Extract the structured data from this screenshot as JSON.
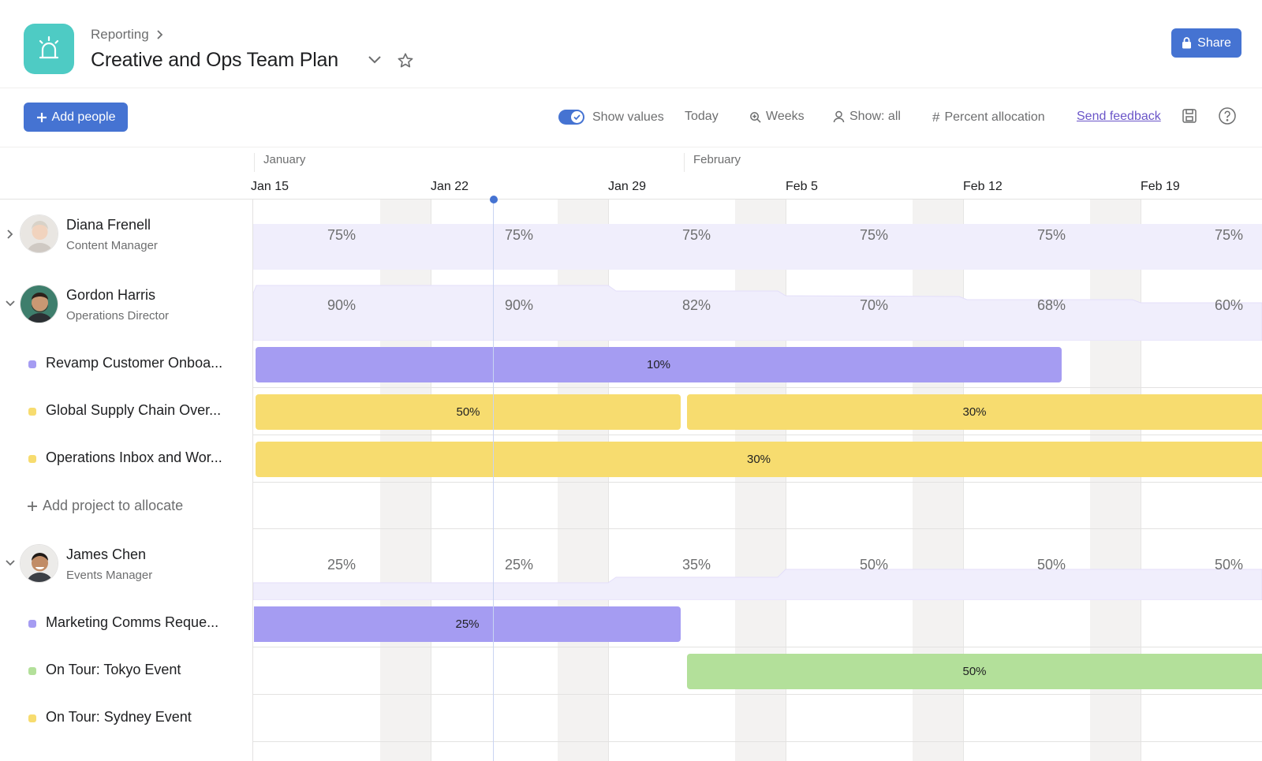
{
  "header": {
    "breadcrumb": "Reporting",
    "title": "Creative and Ops Team Plan",
    "share_label": "Share"
  },
  "toolbar": {
    "add_people_label": "Add people",
    "show_values_label": "Show values",
    "show_values_on": true,
    "today_label": "Today",
    "weeks_label": "Weeks",
    "show_all_label": "Show: all",
    "percent_allocation_label": "Percent allocation",
    "send_feedback_label": "Send feedback"
  },
  "timeline": {
    "months": [
      "January",
      "February"
    ],
    "weeks": [
      "Jan 15",
      "Jan 22",
      "Jan 29",
      "Feb 5",
      "Feb 12",
      "Feb 19"
    ]
  },
  "people": [
    {
      "name": "Diana Frenell",
      "role": "Content Manager",
      "expanded": false,
      "weekly_allocation": [
        "75%",
        "75%",
        "75%",
        "75%",
        "75%",
        "75%"
      ]
    },
    {
      "name": "Gordon Harris",
      "role": "Operations Director",
      "expanded": true,
      "weekly_allocation": [
        "90%",
        "90%",
        "82%",
        "70%",
        "68%",
        "60%"
      ],
      "projects": [
        {
          "name": "Revamp Customer Onboa...",
          "color": "#a59cf2",
          "allocations": [
            {
              "label": "10%"
            }
          ]
        },
        {
          "name": "Global Supply Chain Over...",
          "color": "#f7dc6f",
          "allocations": [
            {
              "label": "50%"
            },
            {
              "label": "30%"
            }
          ]
        },
        {
          "name": "Operations Inbox and Wor...",
          "color": "#f7dc6f",
          "allocations": [
            {
              "label": "30%"
            }
          ]
        }
      ],
      "add_project_label": "Add project to allocate"
    },
    {
      "name": "James Chen",
      "role": "Events Manager",
      "expanded": true,
      "weekly_allocation": [
        "25%",
        "25%",
        "35%",
        "50%",
        "50%",
        "50%"
      ],
      "projects": [
        {
          "name": "Marketing Comms Reque...",
          "color": "#a59cf2",
          "allocations": [
            {
              "label": "25%"
            }
          ]
        },
        {
          "name": "On Tour: Tokyo Event",
          "color": "#b3e09a",
          "allocations": [
            {
              "label": "50%"
            }
          ]
        },
        {
          "name": "On Tour: Sydney Event",
          "color": "#f7dc6f",
          "allocations": []
        }
      ]
    }
  ],
  "colors": {
    "accent": "#4573d2",
    "app_icon": "#4ecbc4",
    "purple_project": "#a59cf2",
    "yellow_project": "#f7dc6f",
    "green_project": "#b3e09a"
  }
}
